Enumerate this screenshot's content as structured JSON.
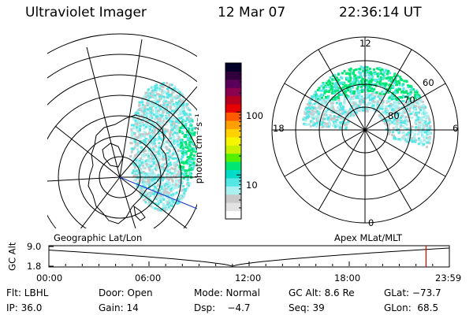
{
  "header": {
    "instrument": "Ultraviolet Imager",
    "date": "12 Mar 07",
    "time": "22:36:14 UT"
  },
  "colorbar": {
    "unit_label": "photon cm⁻²s⁻¹",
    "ticks": [
      {
        "value": 10,
        "label": "10"
      },
      {
        "value": 100,
        "label": "100"
      }
    ],
    "colors": [
      "#ffffff",
      "#e2e2e2",
      "#c8c8c8",
      "#aaf0f0",
      "#55e6e6",
      "#00dcc8",
      "#00e673",
      "#55f000",
      "#c8f000",
      "#f5f500",
      "#ffd200",
      "#ffa000",
      "#ff5a00",
      "#e60000",
      "#b4001e",
      "#8c0050",
      "#5a005a",
      "#32003c",
      "#000028"
    ]
  },
  "geo_panel": {
    "label": "Geographic Lat/Lon"
  },
  "polar_panel": {
    "label": "Apex MLat/MLT",
    "mlt_labels": {
      "top": "12",
      "left": "18",
      "right": "6",
      "bottom": "0"
    },
    "lat_labels": [
      "60",
      "70",
      "80"
    ]
  },
  "altitude_strip": {
    "ylabel": "GC Alt",
    "y_top": "9.0",
    "y_bottom": "1.8",
    "x_ticks": [
      "00:00",
      "06:00",
      "12:00",
      "18:00",
      "23:59"
    ],
    "marker_hour": 22.6
  },
  "footer": {
    "flt": "Flt: LBHL",
    "door": "Door: Open",
    "mode": "Mode: Normal",
    "gc_alt": "GC Alt: 8.6 Re",
    "glat": "GLat: −73.7",
    "ip": "IP: 36.0",
    "gain": "Gain: 14",
    "dsp": "Dsp:    −4.7",
    "seq": "Seq: 39",
    "glon": "GLon:  68.5"
  }
}
